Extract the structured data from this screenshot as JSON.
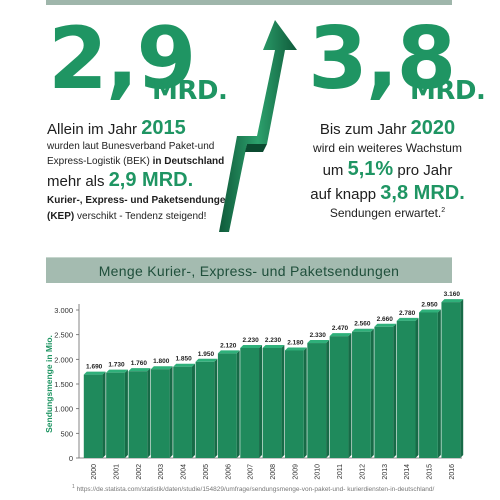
{
  "left": {
    "big_number": "2,9",
    "unit": "MRD.",
    "line1_pre": "Allein im Jahr ",
    "line1_year": "2015",
    "line2": "wurden laut Bunesverband Paket-und",
    "line3_pre": "Express-Logistik (BEK) ",
    "line3_bold": "in Deutschland",
    "line4_pre": "mehr als ",
    "line4_num": "2,9 MRD.",
    "line5": "Kurier-, Express- und Paketsendungen",
    "line6_bold": "(KEP)",
    "line6_rest": " verschikt - Tendenz steigend!"
  },
  "right": {
    "big_number": "3,8",
    "unit": "MRD.",
    "line1_pre": "Bis zum Jahr ",
    "line1_year": "2020",
    "line2": "wird ein weiteres Wachstum",
    "line3_pre": "um ",
    "line3_pct": "5,1%",
    "line3_post": " pro Jahr",
    "line4_pre": "auf knapp ",
    "line4_num": "3,8 MRD.",
    "line5": "Sendungen erwartet.",
    "line5_sup": "2"
  },
  "footnote": {
    "sup": "1",
    "text": "https://de.statista.com/statistik/daten/studie/154829/umfrage/sendungsmenge-von-paket-und- kurierdiensten-in-deutschland/"
  },
  "colors": {
    "accent": "#1f9563",
    "bar_face": "#1f8a5c",
    "bar_top": "#2fb07a",
    "bar_side": "#176b47",
    "banner": "#a4bbb0"
  },
  "chart_data": {
    "type": "bar",
    "title": "Menge Kurier-, Express- und Paketsendungen",
    "ylabel": "Sendungsmenge in Mio.",
    "xlabel": "",
    "categories": [
      "2000",
      "2001",
      "2002",
      "2003",
      "2004",
      "2005",
      "2006",
      "2007",
      "2008",
      "2009",
      "2010",
      "2011",
      "2012",
      "2013",
      "2014",
      "2015",
      "2016"
    ],
    "values": [
      1690,
      1730,
      1760,
      1800,
      1850,
      1950,
      2120,
      2230,
      2230,
      2180,
      2330,
      2470,
      2560,
      2660,
      2780,
      2950,
      3160
    ],
    "value_labels": [
      "1.690",
      "1.730",
      "1.760",
      "1.800",
      "1.850",
      "1.950",
      "2.120",
      "2.230",
      "2.230",
      "2.180",
      "2.330",
      "2.470",
      "2.560",
      "2.660",
      "2.780",
      "2.950",
      "3.160"
    ],
    "ylim": [
      0,
      3000
    ],
    "yticks": [
      0,
      500,
      1000,
      1500,
      2000,
      2500,
      3000
    ],
    "ytick_labels": [
      "0",
      "500",
      "1.000",
      "1.500",
      "2.000",
      "2.500",
      "3.000"
    ],
    "grid": false
  }
}
